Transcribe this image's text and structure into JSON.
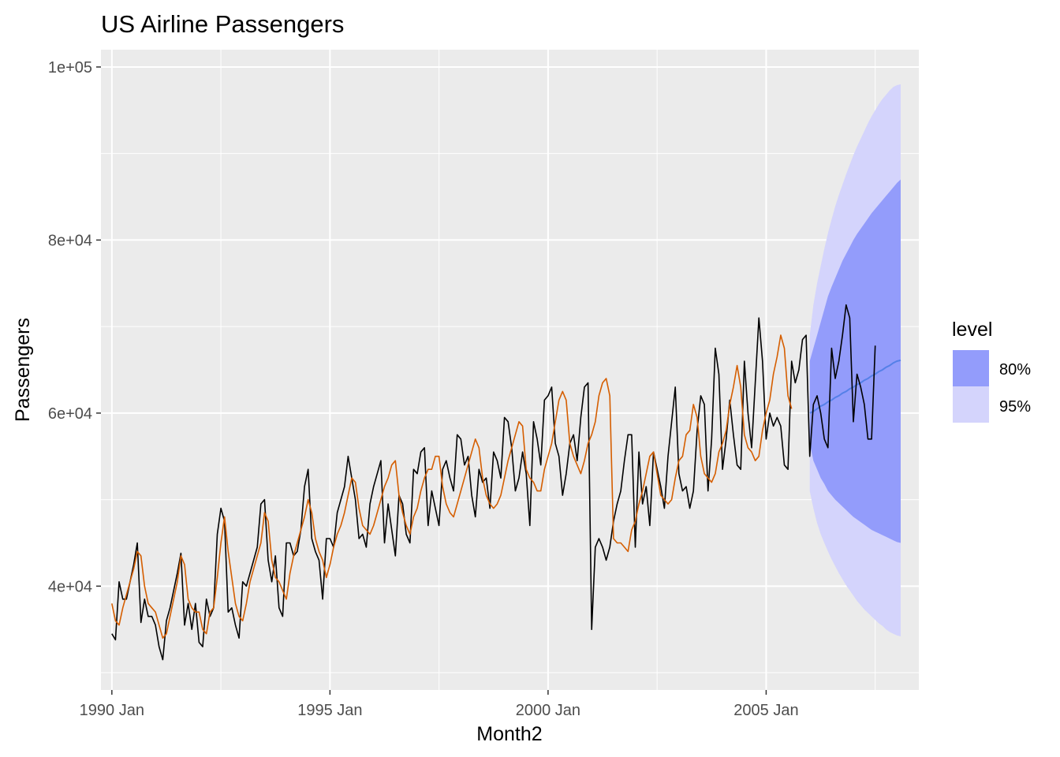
{
  "chart_data": {
    "type": "line",
    "title": "US Airline Passengers",
    "xlabel": "Month2",
    "ylabel": "Passengers",
    "x_range": [
      "1989-10",
      "2008-07"
    ],
    "ylim": [
      28000,
      102000
    ],
    "x_ticks": [
      {
        "date": "1990-01",
        "label": "1990 Jan"
      },
      {
        "date": "1995-01",
        "label": "1995 Jan"
      },
      {
        "date": "2000-01",
        "label": "2000 Jan"
      },
      {
        "date": "2005-01",
        "label": "2005 Jan"
      }
    ],
    "y_ticks": [
      {
        "value": 40000,
        "label": "4e+04"
      },
      {
        "value": 60000,
        "label": "6e+04"
      },
      {
        "value": 80000,
        "label": "8e+04"
      },
      {
        "value": 100000,
        "label": "1e+05"
      }
    ],
    "grid": true,
    "legend": {
      "title": "level",
      "position": "right",
      "items": [
        {
          "label": "80%",
          "color": "#939cfb"
        },
        {
          "label": "95%",
          "color": "#d4d4fc"
        }
      ]
    },
    "colors": {
      "panel": "#ebebeb",
      "actual": "#000000",
      "fitted": "#d55e00",
      "forecast_mean": "#5580e8",
      "band80": "#939cfb",
      "band95": "#d4d4fc"
    },
    "series": [
      {
        "role": "actual",
        "start": "1990-01",
        "values": [
          34500,
          33800,
          40500,
          38500,
          38500,
          40500,
          42500,
          45000,
          35800,
          38500,
          36500,
          36500,
          35500,
          33000,
          31500,
          36000,
          37500,
          39500,
          41500,
          43800,
          35500,
          38000,
          35000,
          38000,
          33500,
          33000,
          38500,
          36500,
          37500,
          46000,
          49000,
          47500,
          37000,
          37500,
          35500,
          34000,
          40500,
          40000,
          41500,
          43000,
          44500,
          49500,
          50000,
          43000,
          40500,
          43500,
          37500,
          36500,
          45000,
          45000,
          43500,
          44000,
          46500,
          51500,
          53500,
          45500,
          44000,
          43000,
          38500,
          45500,
          45500,
          44500,
          48500,
          50000,
          51500,
          55000,
          52500,
          50000,
          45500,
          46000,
          44500,
          49500,
          51500,
          53000,
          54500,
          45000,
          49500,
          46500,
          43500,
          50500,
          49500,
          46000,
          45000,
          53500,
          53000,
          55500,
          56000,
          47000,
          51000,
          49000,
          47000,
          53500,
          54500,
          52500,
          51000,
          57500,
          57000,
          54000,
          55000,
          50500,
          48000,
          53500,
          52000,
          52500,
          49000,
          55500,
          54500,
          52500,
          59500,
          59000,
          56000,
          51000,
          52500,
          55500,
          53000,
          47000,
          59000,
          57000,
          54000,
          61500,
          62000,
          63000,
          56500,
          55000,
          50500,
          53000,
          56500,
          57500,
          54500,
          59500,
          63000,
          63500,
          35000,
          44500,
          45500,
          44500,
          43000,
          44500,
          47500,
          49500,
          51000,
          54500,
          57500,
          57500,
          44500,
          55500,
          49500,
          51500,
          47000,
          55500,
          53500,
          51500,
          49000,
          55000,
          59000,
          63000,
          53000,
          51000,
          51500,
          49000,
          51000,
          58000,
          62000,
          61000,
          51000,
          57000,
          67500,
          64500,
          53500,
          57000,
          61500,
          57500,
          54000,
          53500,
          66000,
          60000,
          56000,
          63500,
          71000,
          66000,
          57000,
          60000,
          58500,
          59500,
          58500,
          54000,
          53500,
          66000,
          63500,
          65000,
          68500,
          69000,
          55000,
          61000,
          62000,
          60000,
          57000,
          56000,
          67500,
          64000,
          66000,
          69000,
          72500,
          71000,
          59000,
          64500,
          63000,
          61000,
          57000,
          57000,
          67800
        ]
      },
      {
        "role": "fitted",
        "start": "1990-01",
        "values": [
          38000,
          36000,
          35500,
          37500,
          39000,
          40500,
          42000,
          44000,
          43500,
          40000,
          38000,
          37500,
          37000,
          35500,
          34000,
          34500,
          36500,
          38500,
          40500,
          43500,
          42500,
          38500,
          37500,
          37000,
          37000,
          35000,
          34500,
          37000,
          37500,
          41000,
          45000,
          48000,
          44000,
          41000,
          38000,
          36500,
          36000,
          38000,
          40500,
          42000,
          43500,
          45000,
          48500,
          47500,
          43000,
          41000,
          40500,
          39500,
          38500,
          41500,
          43500,
          45000,
          46500,
          48000,
          50000,
          48500,
          45500,
          44000,
          43000,
          41000,
          42500,
          44500,
          46000,
          47000,
          48500,
          50500,
          52500,
          52000,
          49000,
          47000,
          46500,
          46000,
          47000,
          48500,
          50000,
          51500,
          52500,
          54000,
          54500,
          50500,
          48500,
          47000,
          46000,
          48000,
          49000,
          51000,
          52500,
          53500,
          53500,
          55000,
          55000,
          51500,
          49500,
          48500,
          48000,
          49500,
          51000,
          52500,
          54000,
          55500,
          57000,
          56000,
          52500,
          50500,
          49500,
          49000,
          49500,
          50500,
          52500,
          54500,
          56000,
          57500,
          59000,
          58500,
          53500,
          52500,
          52000,
          51000,
          51000,
          53500,
          55000,
          56500,
          59000,
          61500,
          62500,
          61500,
          56500,
          55000,
          54000,
          53000,
          54500,
          56500,
          57500,
          59000,
          62000,
          63500,
          64000,
          62000,
          45500,
          45000,
          45000,
          44500,
          44000,
          46500,
          47500,
          49500,
          51000,
          53000,
          55000,
          55500,
          53000,
          50500,
          50000,
          49500,
          50000,
          52500,
          54500,
          55000,
          57500,
          58000,
          61000,
          59500,
          55000,
          53000,
          52500,
          52000,
          53000,
          55500,
          56500,
          58000,
          61000,
          63000,
          65500,
          63000,
          57500,
          56000,
          55500,
          54500,
          55000,
          58000,
          60000,
          61500,
          64500,
          66500,
          69000,
          67500,
          62000,
          60500
        ]
      },
      {
        "role": "forecast",
        "start": "2006-01",
        "mean": [
          60000,
          60200,
          60500,
          60800,
          61000,
          61300,
          61500,
          61800,
          62000,
          62300,
          62500,
          62800,
          63000,
          63300,
          63500,
          63800,
          64000,
          64300,
          64500,
          64800,
          65000,
          65300,
          65500,
          65800,
          66000,
          66100
        ],
        "lo80": [
          56500,
          54500,
          53500,
          52500,
          51800,
          51000,
          50500,
          50000,
          49600,
          49200,
          48800,
          48400,
          48000,
          47700,
          47400,
          47100,
          46800,
          46500,
          46300,
          46100,
          45900,
          45700,
          45500,
          45300,
          45100,
          45000
        ],
        "hi80": [
          66000,
          67500,
          69000,
          70500,
          72000,
          73500,
          74600,
          75600,
          76600,
          77600,
          78400,
          79200,
          80000,
          80700,
          81300,
          81900,
          82500,
          83100,
          83600,
          84100,
          84600,
          85100,
          85600,
          86100,
          86600,
          87000
        ],
        "lo95": [
          51000,
          49000,
          47300,
          46000,
          45000,
          44000,
          43100,
          42300,
          41500,
          40800,
          40100,
          39500,
          38900,
          38300,
          37800,
          37300,
          36900,
          36500,
          36100,
          35700,
          35400,
          35000,
          34700,
          34500,
          34300,
          34200
        ],
        "hi95": [
          69000,
          72500,
          75000,
          77000,
          79000,
          80800,
          82400,
          83900,
          85200,
          86400,
          87600,
          88700,
          89800,
          90800,
          91700,
          92600,
          93500,
          94300,
          95000,
          95700,
          96300,
          96800,
          97300,
          97700,
          97900,
          98000
        ]
      }
    ]
  }
}
